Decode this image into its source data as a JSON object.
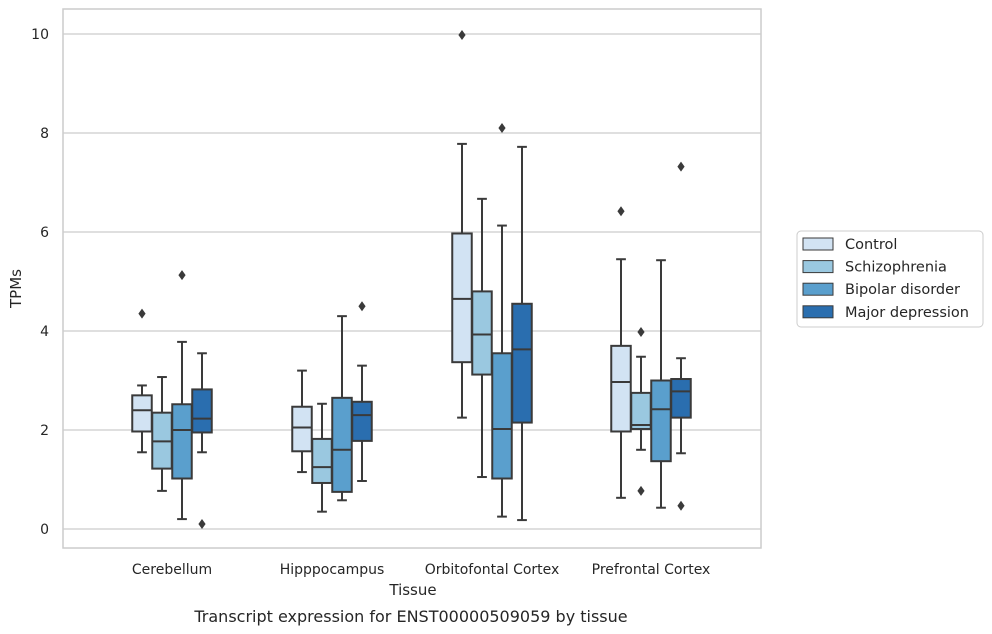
{
  "chart_data": {
    "type": "box",
    "xlabel": "Tissue",
    "ylabel": "TPMs",
    "caption": "Transcript expression for ENST00000509059 by tissue",
    "ylim": [
      -0.35,
      10.5
    ],
    "yticks": [
      0,
      2,
      4,
      6,
      8,
      10
    ],
    "grid": "horizontal",
    "legend_position": "right",
    "categories": [
      "Cerebellum",
      "Hipppocampus",
      "Orbitofontal Cortex",
      "Prefrontal Cortex"
    ],
    "series": [
      {
        "name": "Control",
        "color": "#d2e3f3",
        "boxes": [
          {
            "whislo": 1.55,
            "q1": 1.97,
            "med": 2.4,
            "q3": 2.7,
            "whishi": 2.9,
            "fliers": [
              4.35
            ]
          },
          {
            "whislo": 1.15,
            "q1": 1.57,
            "med": 2.05,
            "q3": 2.47,
            "whishi": 3.2,
            "fliers": []
          },
          {
            "whislo": 2.25,
            "q1": 3.37,
            "med": 4.65,
            "q3": 5.97,
            "whishi": 7.78,
            "fliers": [
              9.98
            ]
          },
          {
            "whislo": 0.63,
            "q1": 1.97,
            "med": 2.97,
            "q3": 3.7,
            "whishi": 5.45,
            "fliers": [
              6.42
            ]
          }
        ]
      },
      {
        "name": "Schizophrenia",
        "color": "#9ac8e0",
        "boxes": [
          {
            "whislo": 0.77,
            "q1": 1.22,
            "med": 1.77,
            "q3": 2.35,
            "whishi": 3.07,
            "fliers": []
          },
          {
            "whislo": 0.35,
            "q1": 0.93,
            "med": 1.25,
            "q3": 1.82,
            "whishi": 2.53,
            "fliers": []
          },
          {
            "whislo": 1.05,
            "q1": 3.12,
            "med": 3.93,
            "q3": 4.8,
            "whishi": 6.67,
            "fliers": []
          },
          {
            "whislo": 1.6,
            "q1": 2.02,
            "med": 2.1,
            "q3": 2.75,
            "whishi": 3.48,
            "fliers": [
              0.77,
              3.98
            ]
          }
        ]
      },
      {
        "name": "Bipolar disorder",
        "color": "#5a9fcd",
        "boxes": [
          {
            "whislo": 0.2,
            "q1": 1.02,
            "med": 2.0,
            "q3": 2.52,
            "whishi": 3.78,
            "fliers": [
              5.13
            ]
          },
          {
            "whislo": 0.58,
            "q1": 0.75,
            "med": 1.6,
            "q3": 2.65,
            "whishi": 4.3,
            "fliers": []
          },
          {
            "whislo": 0.25,
            "q1": 1.02,
            "med": 2.02,
            "q3": 3.55,
            "whishi": 6.13,
            "fliers": [
              8.1
            ]
          },
          {
            "whislo": 0.43,
            "q1": 1.37,
            "med": 2.42,
            "q3": 3.0,
            "whishi": 5.43,
            "fliers": []
          }
        ]
      },
      {
        "name": "Major depression",
        "color": "#2a6eaf",
        "boxes": [
          {
            "whislo": 1.55,
            "q1": 1.95,
            "med": 2.23,
            "q3": 2.82,
            "whishi": 3.55,
            "fliers": [
              0.1
            ]
          },
          {
            "whislo": 0.97,
            "q1": 1.78,
            "med": 2.3,
            "q3": 2.57,
            "whishi": 3.3,
            "fliers": [
              4.5
            ]
          },
          {
            "whislo": 0.18,
            "q1": 2.15,
            "med": 3.63,
            "q3": 4.55,
            "whishi": 7.72,
            "fliers": []
          },
          {
            "whislo": 1.53,
            "q1": 2.25,
            "med": 2.78,
            "q3": 3.03,
            "whishi": 3.45,
            "fliers": [
              0.47,
              7.32
            ]
          }
        ]
      }
    ]
  }
}
